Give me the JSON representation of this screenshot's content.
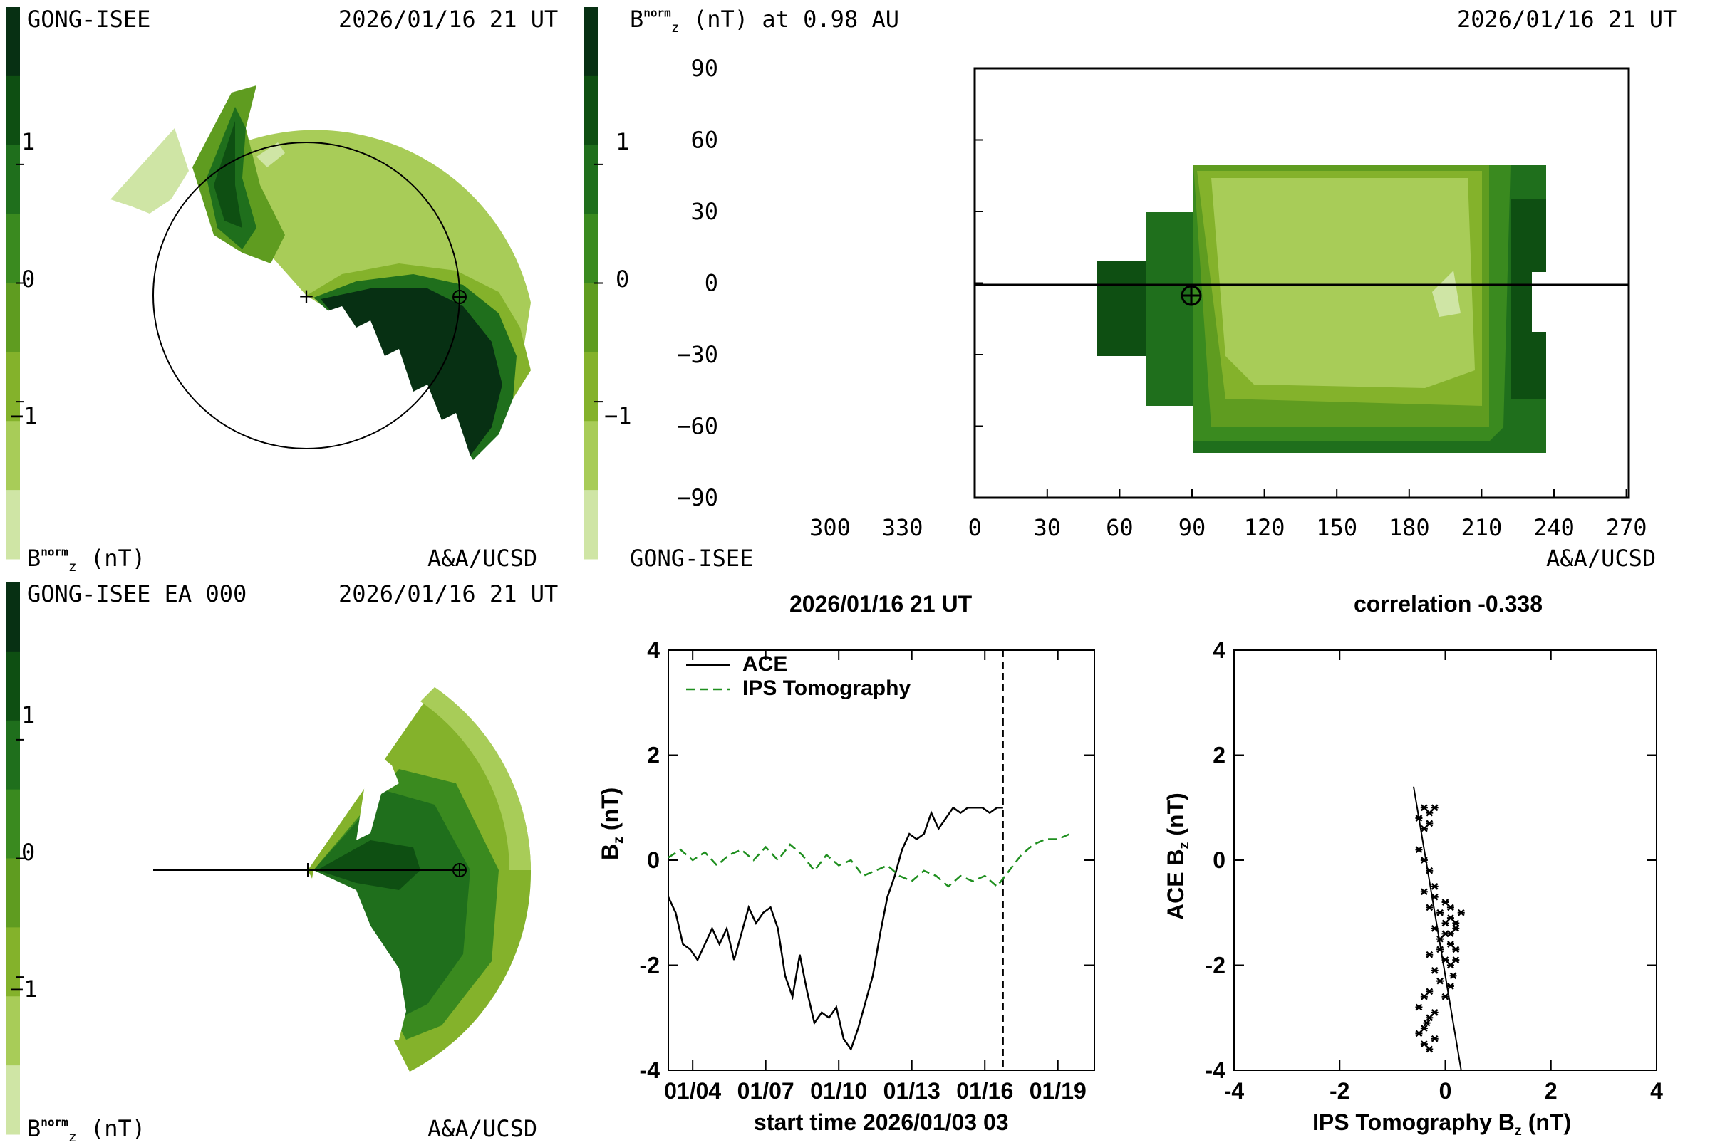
{
  "colors": {
    "scale": [
      "#cfe5a5",
      "#a8cc58",
      "#84b22b",
      "#5f9c20",
      "#3a8a1f",
      "#1f6f1c",
      "#0e4f12",
      "#073013"
    ],
    "background": "#ffffff"
  },
  "panel_tl": {
    "title_left": "GONG-ISEE",
    "title_right": "2026/01/16 21 UT",
    "bar_ticks": [
      "1",
      "0",
      "−1"
    ],
    "unit_prefix": "B",
    "unit_sub": "z",
    "unit_sup": "norm",
    "unit_suffix": "(nT)",
    "credit": "A&A/UCSD"
  },
  "panel_tr": {
    "title_left_prefix": "B",
    "title_left_sub": "z",
    "title_left_sup": "norm",
    "title_left_suffix": "(nT) at 0.98 AU",
    "title_right": "2026/01/16 21 UT",
    "bar_ticks": [
      "1",
      "0",
      "−1"
    ],
    "y_ticks": [
      "90",
      "60",
      "30",
      "0",
      "−30",
      "−60",
      "−90"
    ],
    "x_ticks": [
      "300",
      "330",
      "0",
      "30",
      "60",
      "90",
      "120",
      "150",
      "180",
      "210",
      "240",
      "270"
    ],
    "bottom_left": "GONG-ISEE",
    "credit": "A&A/UCSD"
  },
  "panel_bl": {
    "title_left": "GONG-ISEE EA 000",
    "title_right": "2026/01/16 21 UT",
    "bar_ticks": [
      "1",
      "0",
      "−1"
    ],
    "unit_prefix": "B",
    "unit_sub": "z",
    "unit_sup": "norm",
    "unit_suffix": "(nT)",
    "credit": "A&A/UCSD"
  },
  "chart_data": [
    {
      "type": "line",
      "title": "2026/01/16 21 UT",
      "xlabel": "start time 2026/01/03 03",
      "ylabel_prefix": "B",
      "ylabel_sub": "z",
      "ylabel_suffix": "(nT)",
      "ylim": [
        -4,
        4
      ],
      "xlim": [
        0,
        17.5
      ],
      "y_ticks": [
        "4",
        "2",
        "0",
        "-2",
        "-4"
      ],
      "x_ticks": [
        "01/04",
        "01/07",
        "01/10",
        "01/13",
        "01/16",
        "01/19"
      ],
      "x_tick_values": [
        1,
        4,
        7,
        10,
        13,
        16
      ],
      "now_marker": 13.75,
      "series": [
        {
          "name": "ACE",
          "style": "solid",
          "color": "#000000",
          "x": [
            0,
            0.3,
            0.6,
            0.9,
            1.2,
            1.5,
            1.8,
            2.1,
            2.4,
            2.7,
            3.0,
            3.3,
            3.6,
            3.9,
            4.2,
            4.5,
            4.8,
            5.1,
            5.4,
            5.7,
            6.0,
            6.3,
            6.6,
            6.9,
            7.2,
            7.5,
            7.8,
            8.1,
            8.4,
            8.7,
            9.0,
            9.3,
            9.6,
            9.9,
            10.2,
            10.5,
            10.8,
            11.1,
            11.4,
            11.7,
            12.0,
            12.3,
            12.6,
            12.9,
            13.2,
            13.5,
            13.75
          ],
          "y": [
            -0.7,
            -1.0,
            -1.6,
            -1.7,
            -1.9,
            -1.6,
            -1.3,
            -1.6,
            -1.3,
            -1.9,
            -1.4,
            -0.9,
            -1.2,
            -1.0,
            -0.9,
            -1.3,
            -2.2,
            -2.6,
            -1.8,
            -2.5,
            -3.1,
            -2.9,
            -3.0,
            -2.8,
            -3.4,
            -3.6,
            -3.2,
            -2.7,
            -2.2,
            -1.4,
            -0.7,
            -0.3,
            0.2,
            0.5,
            0.4,
            0.5,
            0.9,
            0.6,
            0.8,
            1.0,
            0.9,
            1.0,
            1.0,
            1.0,
            0.9,
            1.0,
            1.0
          ]
        },
        {
          "name": "IPS Tomography",
          "style": "dashed",
          "color": "#1f8f1f",
          "x": [
            0,
            0.5,
            1,
            1.5,
            2,
            2.5,
            3,
            3.5,
            4,
            4.5,
            5,
            5.5,
            6,
            6.5,
            7,
            7.5,
            8,
            8.5,
            9,
            9.5,
            10,
            10.5,
            11,
            11.5,
            12,
            12.5,
            13,
            13.5,
            14,
            14.5,
            15,
            15.5,
            16,
            16.5
          ],
          "y": [
            0.05,
            0.2,
            0.0,
            0.15,
            -0.1,
            0.1,
            0.2,
            0.0,
            0.25,
            0.0,
            0.3,
            0.1,
            -0.2,
            0.1,
            -0.1,
            0.0,
            -0.3,
            -0.2,
            -0.1,
            -0.3,
            -0.4,
            -0.2,
            -0.3,
            -0.5,
            -0.3,
            -0.4,
            -0.3,
            -0.5,
            -0.2,
            0.1,
            0.3,
            0.4,
            0.4,
            0.5
          ]
        }
      ]
    },
    {
      "type": "scatter",
      "title": "correlation -0.338",
      "xlabel_prefix": "IPS Tomography B",
      "xlabel_sub": "z",
      "xlabel_suffix": "(nT)",
      "ylabel_prefix": "ACE B",
      "ylabel_sub": "z",
      "ylabel_suffix": "(nT)",
      "xlim": [
        -4,
        4
      ],
      "ylim": [
        -4,
        4
      ],
      "x_ticks": [
        "-4",
        "-2",
        "0",
        "2",
        "4"
      ],
      "y_ticks": [
        "4",
        "2",
        "0",
        "-2",
        "-4"
      ],
      "fit_line": {
        "x": [
          -0.6,
          0.3
        ],
        "y": [
          1.4,
          -4.0
        ]
      },
      "points": [
        [
          -0.4,
          1.0
        ],
        [
          -0.3,
          0.9
        ],
        [
          -0.5,
          0.8
        ],
        [
          -0.2,
          1.0
        ],
        [
          -0.4,
          0.6
        ],
        [
          -0.3,
          0.7
        ],
        [
          -0.5,
          0.2
        ],
        [
          -0.4,
          0.0
        ],
        [
          -0.3,
          -0.2
        ],
        [
          -0.2,
          -0.5
        ],
        [
          -0.4,
          -0.6
        ],
        [
          -0.3,
          -0.9
        ],
        [
          -0.1,
          -1.0
        ],
        [
          0.0,
          -0.8
        ],
        [
          0.1,
          -1.1
        ],
        [
          0.2,
          -1.2
        ],
        [
          -0.2,
          -1.3
        ],
        [
          0.0,
          -1.4
        ],
        [
          0.1,
          -1.6
        ],
        [
          -0.1,
          -1.5
        ],
        [
          0.2,
          -1.7
        ],
        [
          -0.3,
          -1.8
        ],
        [
          0.0,
          -1.9
        ],
        [
          0.1,
          -2.0
        ],
        [
          -0.2,
          -2.1
        ],
        [
          0.2,
          -1.3
        ],
        [
          0.3,
          -1.0
        ],
        [
          0.1,
          -0.9
        ],
        [
          -0.1,
          -2.3
        ],
        [
          -0.3,
          -2.5
        ],
        [
          -0.4,
          -2.6
        ],
        [
          -0.5,
          -2.8
        ],
        [
          -0.3,
          -3.0
        ],
        [
          -0.4,
          -3.2
        ],
        [
          -0.2,
          -3.4
        ],
        [
          -0.5,
          -3.3
        ],
        [
          -0.3,
          -3.6
        ],
        [
          -0.4,
          -3.5
        ],
        [
          -0.2,
          -2.9
        ],
        [
          0.0,
          -2.6
        ],
        [
          0.1,
          -2.4
        ],
        [
          -0.1,
          -1.7
        ],
        [
          0.2,
          -1.9
        ],
        [
          0.0,
          -1.2
        ],
        [
          -0.2,
          -0.7
        ],
        [
          0.1,
          -1.4
        ],
        [
          0.15,
          -2.2
        ],
        [
          -0.35,
          -3.1
        ]
      ]
    }
  ]
}
